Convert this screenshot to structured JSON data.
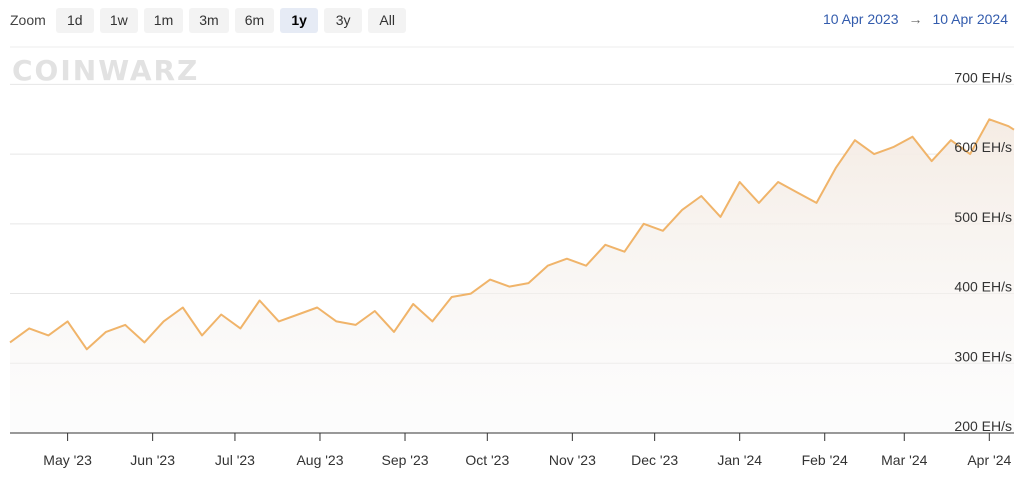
{
  "toolbar": {
    "zoom_label": "Zoom",
    "zoom_options": [
      "1d",
      "1w",
      "1m",
      "3m",
      "6m",
      "1y",
      "3y",
      "All"
    ],
    "selected": "1y",
    "range_from": "10 Apr 2023",
    "range_arrow": "→",
    "range_to": "10 Apr 2024"
  },
  "watermark": "COINWARZ",
  "colors": {
    "line": "#f0b46a",
    "fill_top": "#f5ece4",
    "grid": "#e6e6e6",
    "accent": "#335cad"
  },
  "chart_data": {
    "type": "line",
    "title": "",
    "xlabel": "",
    "ylabel": "",
    "x_ticks": [
      "May '23",
      "Jun '23",
      "Jul '23",
      "Aug '23",
      "Sep '23",
      "Oct '23",
      "Nov '23",
      "Dec '23",
      "Jan '24",
      "Feb '24",
      "Mar '24",
      "Apr '24"
    ],
    "y_ticks": [
      "200 EH/s",
      "300 EH/s",
      "400 EH/s",
      "500 EH/s",
      "600 EH/s",
      "700 EH/s"
    ],
    "ylim": [
      200,
      735
    ],
    "grid": true,
    "series": [
      {
        "x": [
          "2023-04-10",
          "2023-04-17",
          "2023-04-24",
          "2023-05-01",
          "2023-05-08",
          "2023-05-15",
          "2023-05-22",
          "2023-05-29",
          "2023-06-05",
          "2023-06-12",
          "2023-06-19",
          "2023-06-26",
          "2023-07-03",
          "2023-07-10",
          "2023-07-17",
          "2023-07-24",
          "2023-07-31",
          "2023-08-07",
          "2023-08-14",
          "2023-08-21",
          "2023-08-28",
          "2023-09-04",
          "2023-09-11",
          "2023-09-18",
          "2023-09-25",
          "2023-10-02",
          "2023-10-09",
          "2023-10-16",
          "2023-10-23",
          "2023-10-30",
          "2023-11-06",
          "2023-11-13",
          "2023-11-20",
          "2023-11-27",
          "2023-12-04",
          "2023-12-11",
          "2023-12-18",
          "2023-12-25",
          "2024-01-01",
          "2024-01-08",
          "2024-01-15",
          "2024-01-22",
          "2024-01-29",
          "2024-02-05",
          "2024-02-12",
          "2024-02-19",
          "2024-02-26",
          "2024-03-04",
          "2024-03-11",
          "2024-03-18",
          "2024-03-25",
          "2024-04-01",
          "2024-04-08",
          "2024-04-10"
        ],
        "y": [
          330,
          350,
          340,
          360,
          320,
          345,
          355,
          330,
          360,
          380,
          340,
          370,
          350,
          390,
          360,
          370,
          380,
          360,
          355,
          375,
          345,
          385,
          360,
          395,
          400,
          420,
          410,
          415,
          440,
          450,
          440,
          470,
          460,
          500,
          490,
          520,
          540,
          510,
          560,
          530,
          560,
          545,
          530,
          580,
          620,
          600,
          610,
          625,
          590,
          620,
          600,
          650,
          640,
          635
        ]
      }
    ]
  }
}
